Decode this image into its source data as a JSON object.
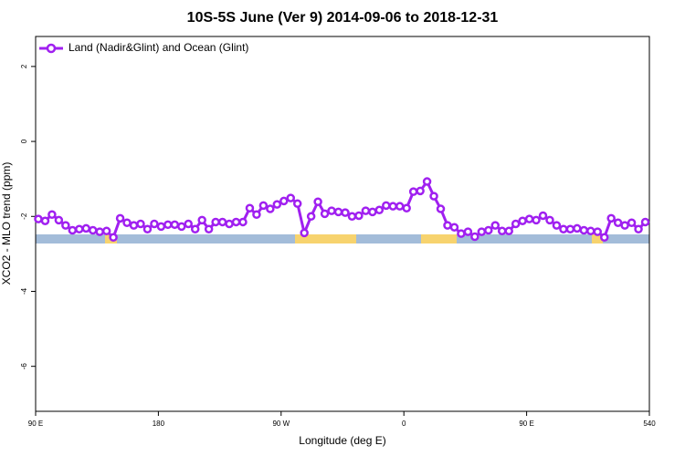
{
  "chart_data": {
    "type": "line",
    "title": "10S-5S June (Ver 9)   2014-09-06 to 2018-12-31",
    "x_label": "Longitude (deg E)",
    "y_label": "XCO2 - MLO trend (ppm)",
    "xlim": [
      90,
      540
    ],
    "ylim": [
      -7.2,
      2.8
    ],
    "xticks": [
      {
        "value": 90,
        "label": "90 E"
      },
      180,
      {
        "value": 270,
        "label": "90 W"
      },
      {
        "value": 360,
        "label": "0"
      },
      {
        "value": 450,
        "label": "90 E"
      },
      540
    ],
    "yticks": [
      -6,
      -4,
      -2,
      0,
      2
    ],
    "legend": "top-left",
    "x": [
      92,
      97,
      102,
      107,
      112,
      117,
      122,
      127,
      132,
      137,
      142,
      147,
      152,
      157,
      162,
      167,
      172,
      177,
      182,
      187,
      192,
      197,
      202,
      207,
      212,
      217,
      222,
      227,
      232,
      237,
      242,
      247,
      252,
      257,
      262,
      267,
      272,
      277,
      282,
      287,
      292,
      297,
      302,
      307,
      312,
      317,
      322,
      327,
      332,
      337,
      342,
      347,
      352,
      357,
      362,
      367,
      372,
      377,
      382,
      387,
      392,
      397,
      402,
      407,
      412,
      417,
      422,
      427,
      432,
      437,
      442,
      447,
      452,
      457,
      462,
      467,
      472,
      477,
      482,
      487,
      492,
      497,
      502,
      507,
      512,
      517,
      522,
      527,
      532,
      537
    ],
    "series": [
      {
        "name": "Land (Nadir&Glint) and Ocean (Glint)",
        "color": "#a020f0",
        "values": [
          -2.07,
          -2.12,
          -1.95,
          -2.1,
          -2.24,
          -2.37,
          -2.34,
          -2.32,
          -2.37,
          -2.41,
          -2.39,
          -2.56,
          -2.05,
          -2.17,
          -2.24,
          -2.2,
          -2.34,
          -2.2,
          -2.27,
          -2.22,
          -2.22,
          -2.27,
          -2.2,
          -2.34,
          -2.1,
          -2.34,
          -2.15,
          -2.15,
          -2.2,
          -2.15,
          -2.15,
          -1.78,
          -1.95,
          -1.71,
          -1.8,
          -1.68,
          -1.59,
          -1.51,
          -1.66,
          -2.44,
          -2.0,
          -1.61,
          -1.93,
          -1.85,
          -1.88,
          -1.9,
          -2.0,
          -1.98,
          -1.85,
          -1.88,
          -1.83,
          -1.71,
          -1.73,
          -1.73,
          -1.78,
          -1.34,
          -1.32,
          -1.07,
          -1.46,
          -1.8,
          -2.24,
          -2.29,
          -2.46,
          -2.41,
          -2.54,
          -2.41,
          -2.37,
          -2.24,
          -2.39,
          -2.39,
          -2.2,
          -2.12,
          -2.07,
          -2.1,
          -1.98,
          -2.1,
          -2.24,
          -2.34,
          -2.34,
          -2.32,
          -2.37,
          -2.39,
          -2.41,
          -2.56,
          -2.05,
          -2.17,
          -2.24,
          -2.17,
          -2.34,
          -2.15
        ]
      }
    ]
  }
}
